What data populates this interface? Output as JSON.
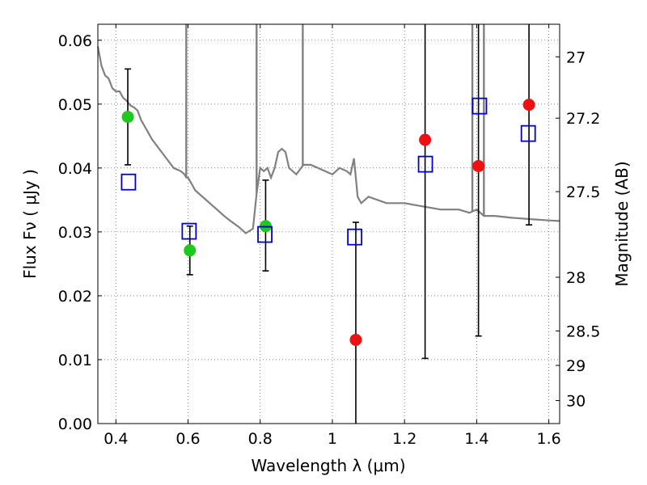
{
  "chart_data": {
    "type": "scatter",
    "xlabel": "Wavelength  λ (μm)",
    "ylabel": "Flux  Fν  ( μJy )",
    "ylabel_right": "Magnitude (AB)",
    "xlim": [
      0.35,
      1.63
    ],
    "ylim": [
      0.0,
      0.0625
    ],
    "x_ticks": [
      0.4,
      0.6,
      0.8,
      1.0,
      1.2,
      1.4,
      1.6
    ],
    "x_tick_labels": [
      "0.4",
      "0.6",
      "0.8",
      "1",
      "1.2",
      "1.4",
      "1.6"
    ],
    "y_ticks": [
      0.0,
      0.01,
      0.02,
      0.03,
      0.04,
      0.05,
      0.06
    ],
    "y_tick_labels": [
      "0.00",
      "0.01",
      "0.02",
      "0.03",
      "0.04",
      "0.05",
      "0.06"
    ],
    "right_ticks": [
      {
        "label": "27",
        "flux": 0.0574
      },
      {
        "label": "27.2",
        "flux": 0.0478
      },
      {
        "label": "27.5",
        "flux": 0.0363
      },
      {
        "label": "28",
        "flux": 0.0229
      },
      {
        "label": "28.5",
        "flux": 0.0145
      },
      {
        "label": "29",
        "flux": 0.0091
      },
      {
        "label": "30",
        "flux": 0.0036
      }
    ],
    "grid": true,
    "colors": {
      "spectrum": "#808080",
      "green": "#1ec81e",
      "red": "#ee1111",
      "model": "#0000cc",
      "errorbar": "#000000"
    },
    "spectrum": {
      "x": [
        0.35,
        0.36,
        0.37,
        0.38,
        0.39,
        0.4,
        0.41,
        0.42,
        0.43,
        0.44,
        0.45,
        0.46,
        0.47,
        0.48,
        0.49,
        0.5,
        0.52,
        0.54,
        0.56,
        0.58,
        0.59,
        0.595,
        0.6,
        0.61,
        0.62,
        0.64,
        0.66,
        0.68,
        0.7,
        0.72,
        0.74,
        0.76,
        0.78,
        0.79,
        0.8,
        0.81,
        0.82,
        0.83,
        0.84,
        0.85,
        0.86,
        0.87,
        0.88,
        0.9,
        0.92,
        0.94,
        0.96,
        0.98,
        1.0,
        1.02,
        1.04,
        1.05,
        1.06,
        1.07,
        1.08,
        1.1,
        1.15,
        1.2,
        1.25,
        1.3,
        1.35,
        1.38,
        1.4,
        1.42,
        1.45,
        1.5,
        1.55,
        1.6,
        1.63
      ],
      "y": [
        0.059,
        0.056,
        0.0545,
        0.054,
        0.0525,
        0.052,
        0.052,
        0.051,
        0.0505,
        0.0498,
        0.0495,
        0.049,
        0.0475,
        0.0465,
        0.0455,
        0.0445,
        0.043,
        0.0415,
        0.04,
        0.0395,
        0.039,
        0.0385,
        0.0385,
        0.0375,
        0.0365,
        0.0355,
        0.0345,
        0.0335,
        0.0325,
        0.0316,
        0.0308,
        0.0298,
        0.0305,
        0.036,
        0.04,
        0.0395,
        0.04,
        0.0385,
        0.04,
        0.0425,
        0.043,
        0.0425,
        0.04,
        0.039,
        0.0405,
        0.0405,
        0.04,
        0.0395,
        0.039,
        0.04,
        0.0395,
        0.039,
        0.0415,
        0.0355,
        0.0345,
        0.0355,
        0.0345,
        0.0345,
        0.034,
        0.0335,
        0.0335,
        0.033,
        0.0335,
        0.0325,
        0.0325,
        0.0322,
        0.032,
        0.0318,
        0.0317
      ]
    },
    "spectrum_spikes": [
      {
        "x": 0.595,
        "y": 0.0625
      },
      {
        "x": 0.79,
        "y": 0.0625
      },
      {
        "x": 0.918,
        "y": 0.0625
      },
      {
        "x": 1.388,
        "y": 0.0625
      },
      {
        "x": 1.42,
        "y": 0.0625
      }
    ],
    "series": [
      {
        "marker": "circle",
        "color": "green",
        "x": [
          0.433,
          0.605,
          0.815
        ],
        "y": [
          0.048,
          0.0271,
          0.0309
        ]
      },
      {
        "marker": "circle",
        "color": "red",
        "x": [
          1.065,
          1.257,
          1.405,
          1.545
        ],
        "y": [
          0.0131,
          0.0444,
          0.0403,
          0.0499
        ]
      },
      {
        "marker": "square",
        "color": "model",
        "x": [
          0.435,
          0.603,
          0.813,
          1.062,
          1.258,
          1.408,
          1.543
        ],
        "y": [
          0.0378,
          0.0301,
          0.0296,
          0.0292,
          0.0406,
          0.0497,
          0.0454
        ]
      }
    ],
    "error_bars": [
      {
        "x": 0.433,
        "low": 0.0405,
        "high": 0.0555
      },
      {
        "x": 0.605,
        "low": 0.0233,
        "high": 0.0309
      },
      {
        "x": 0.815,
        "low": 0.0239,
        "high": 0.0381
      },
      {
        "x": 1.065,
        "low": 0.0,
        "high": 0.0315
      },
      {
        "x": 1.257,
        "low": 0.0102,
        "high": 0.0625
      },
      {
        "x": 1.405,
        "low": 0.0137,
        "high": 0.0625
      },
      {
        "x": 1.545,
        "low": 0.0311,
        "high": 0.0625
      }
    ]
  }
}
